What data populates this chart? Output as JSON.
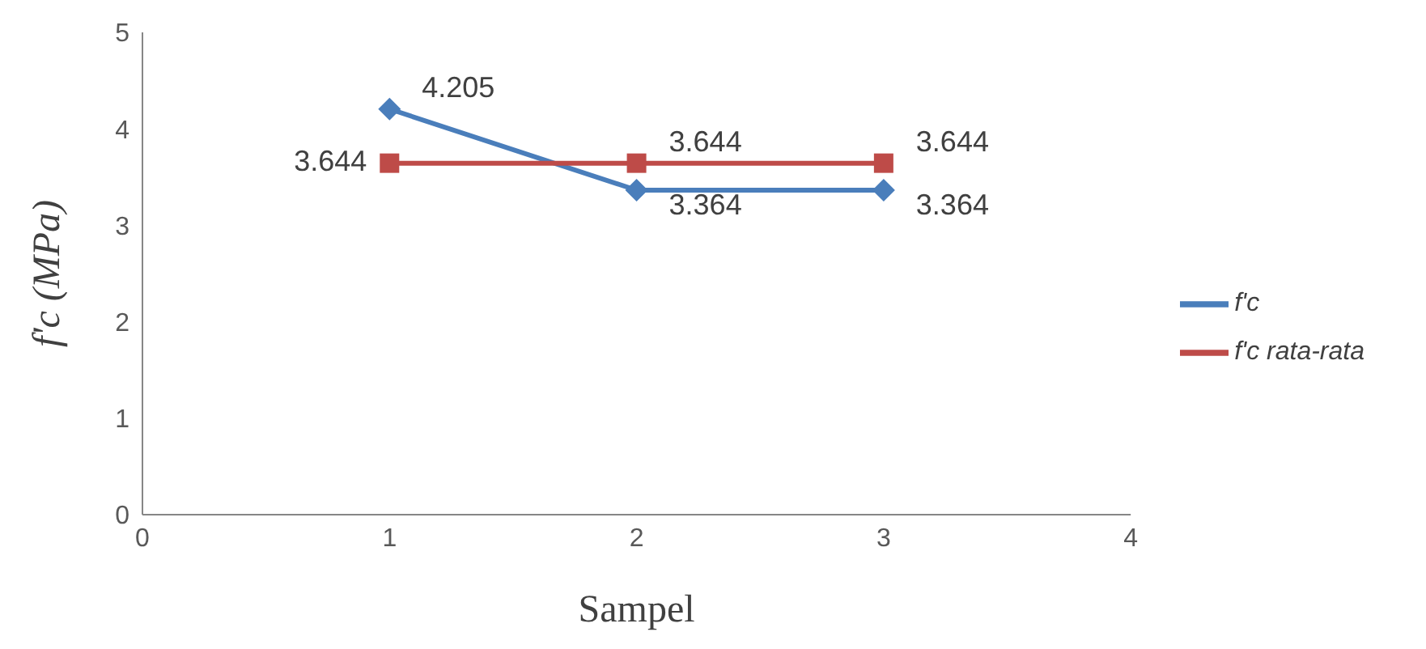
{
  "chart_data": {
    "type": "line",
    "xlabel": "Sampel",
    "ylabel": "f'c (MPa)",
    "x": [
      1,
      2,
      3
    ],
    "series": [
      {
        "name": "f'c",
        "color": "#4a7ebb",
        "values": [
          4.205,
          3.364,
          3.364
        ],
        "marker": "diamond"
      },
      {
        "name": "f'c rata-rata",
        "color": "#be4b48",
        "values": [
          3.644,
          3.644,
          3.644
        ],
        "marker": "square"
      }
    ],
    "xlim": [
      0,
      4
    ],
    "xticks": [
      0,
      1,
      2,
      3,
      4
    ],
    "ylim": [
      0,
      5
    ],
    "yticks": [
      0,
      1,
      2,
      3,
      4,
      5
    ],
    "grid": false,
    "legend": "right",
    "data_labels": true
  }
}
